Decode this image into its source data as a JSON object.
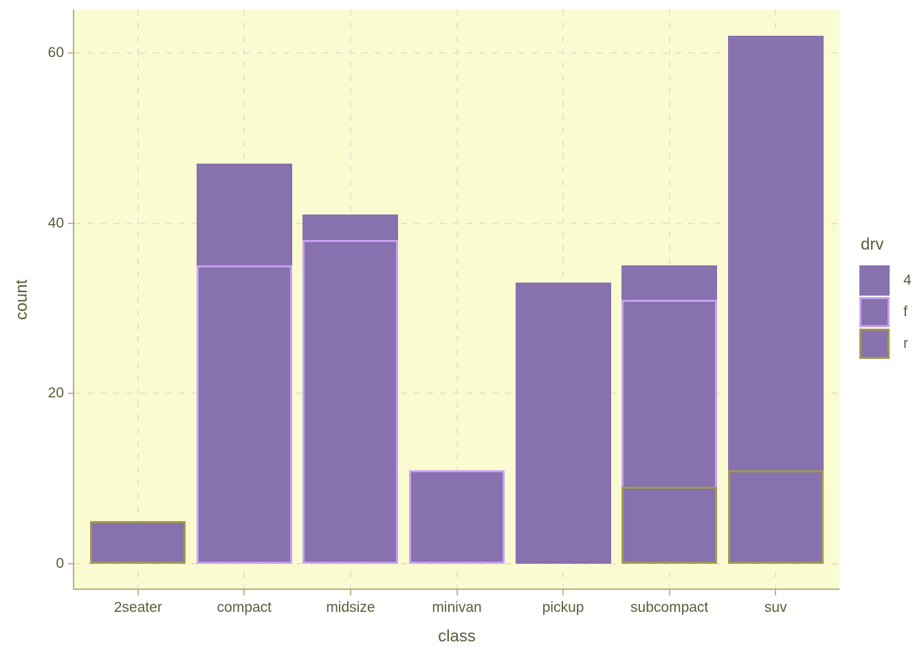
{
  "chart_data": {
    "type": "bar",
    "stacked": true,
    "title": "",
    "xlabel": "class",
    "ylabel": "count",
    "categories": [
      "2seater",
      "compact",
      "midsize",
      "minivan",
      "pickup",
      "subcompact",
      "suv"
    ],
    "series": [
      {
        "name": "4",
        "values": [
          0,
          12,
          3,
          0,
          33,
          4,
          51
        ]
      },
      {
        "name": "f",
        "values": [
          0,
          35,
          38,
          11,
          0,
          22,
          0
        ]
      },
      {
        "name": "r",
        "values": [
          5,
          0,
          0,
          0,
          0,
          9,
          11
        ]
      }
    ],
    "totals": [
      5,
      47,
      41,
      11,
      33,
      35,
      62
    ],
    "stack_order_bottom_to_top": [
      "r",
      "f",
      "4"
    ],
    "y_ticks": [
      0,
      20,
      40,
      60
    ],
    "ylim": [
      -3.1,
      65.1
    ],
    "bar_relative_width": 0.9,
    "grid": "dashed major gridlines, horizontal at y ticks and vertical at category centers",
    "legend": {
      "title": "drv",
      "position": "right",
      "entries": [
        {
          "label": "4",
          "fill": "#8771AF",
          "border": "#8771AF"
        },
        {
          "label": "f",
          "fill": "#8771AF",
          "border": "#C9A0F2"
        },
        {
          "label": "r",
          "fill": "#8771AF",
          "border": "#A1994F"
        }
      ]
    },
    "colors": {
      "bar_fill": "#8771AF",
      "border_4": "#8771AF",
      "border_f": "#C9A0F2",
      "border_r": "#A1994F",
      "panel_background": "#FBFBD2",
      "grid_line": "#E4E4CE",
      "axis_line": "#B4B07D",
      "tick_mark": "#BDB98A",
      "text": "#5C5B3A",
      "page_background": "#FFFFFF"
    }
  }
}
